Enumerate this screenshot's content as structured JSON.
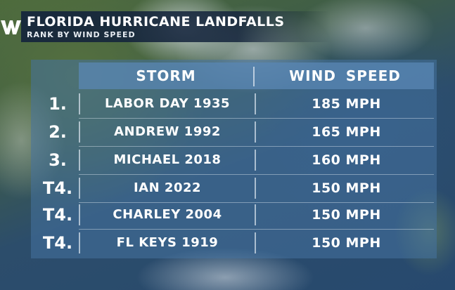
{
  "logo": {
    "icon": "wn-logo-icon",
    "text": "W"
  },
  "header": {
    "title": "FLORIDA HURRICANE LANDFALLS",
    "subtitle": "RANK BY WIND SPEED"
  },
  "table": {
    "columns": [
      "STORM",
      "WIND SPEED"
    ],
    "rows": [
      {
        "rank": "1.",
        "storm": "LABOR DAY 1935",
        "wind": "185 MPH"
      },
      {
        "rank": "2.",
        "storm": "ANDREW 1992",
        "wind": "165 MPH"
      },
      {
        "rank": "3.",
        "storm": "MICHAEL 2018",
        "wind": "160 MPH"
      },
      {
        "rank": "T4.",
        "storm": "IAN 2022",
        "wind": "150 MPH"
      },
      {
        "rank": "T4.",
        "storm": "CHARLEY 2004",
        "wind": "150 MPH"
      },
      {
        "rank": "T4.",
        "storm": "FL KEYS 1919",
        "wind": "150 MPH"
      }
    ]
  },
  "colors": {
    "header_bg": "#14243c",
    "table_bg": "#4673a0",
    "text": "#ffffff"
  }
}
